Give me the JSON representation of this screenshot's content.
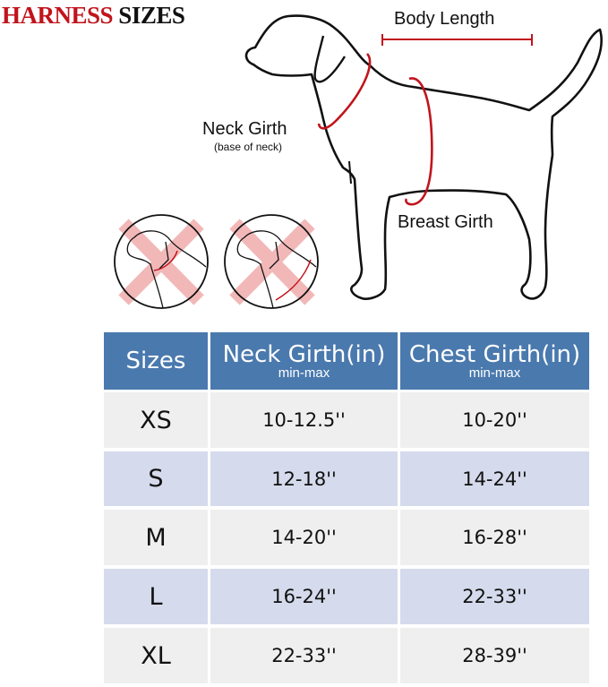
{
  "title": {
    "part1": "HARNESS",
    "part2": "SIZES"
  },
  "colors": {
    "title_red": "#c1141c",
    "header_blue": "#4a79ae",
    "row_light": "#efefef",
    "row_blue": "#d5dbec",
    "measure_red": "#c1141c"
  },
  "diagram": {
    "body_length": "Body Length",
    "neck_girth": "Neck Girth",
    "neck_girth_note": "(base of neck)",
    "breast_girth": "Breast Girth"
  },
  "table": {
    "headers": [
      {
        "label": "Sizes",
        "sub": ""
      },
      {
        "label": "Neck Girth(in)",
        "sub": "min-max"
      },
      {
        "label": "Chest Girth(in)",
        "sub": "min-max"
      }
    ],
    "rows": [
      {
        "size": "XS",
        "neck": "10-12.5''",
        "chest": "10-20''"
      },
      {
        "size": "S",
        "neck": "12-18''",
        "chest": "14-24''"
      },
      {
        "size": "M",
        "neck": "14-20''",
        "chest": "16-28''"
      },
      {
        "size": "L",
        "neck": "16-24''",
        "chest": "22-33''"
      },
      {
        "size": "XL",
        "neck": "22-33''",
        "chest": "28-39''"
      }
    ]
  }
}
